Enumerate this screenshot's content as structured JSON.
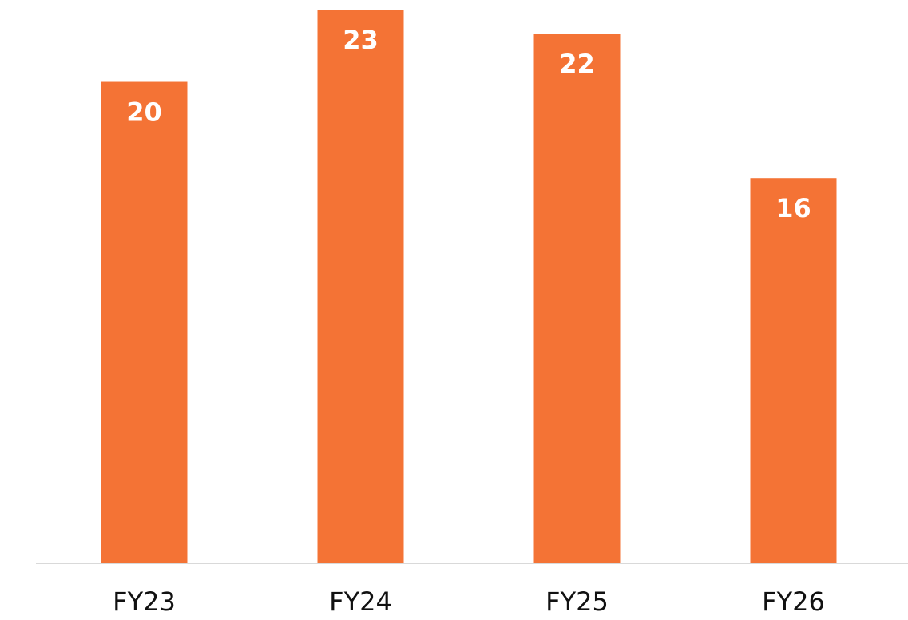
{
  "chart_data": {
    "type": "bar",
    "categories": [
      "FY23",
      "FY24",
      "FY25",
      "FY26"
    ],
    "values": [
      20,
      23,
      22,
      16
    ],
    "color": "#f47335"
  }
}
